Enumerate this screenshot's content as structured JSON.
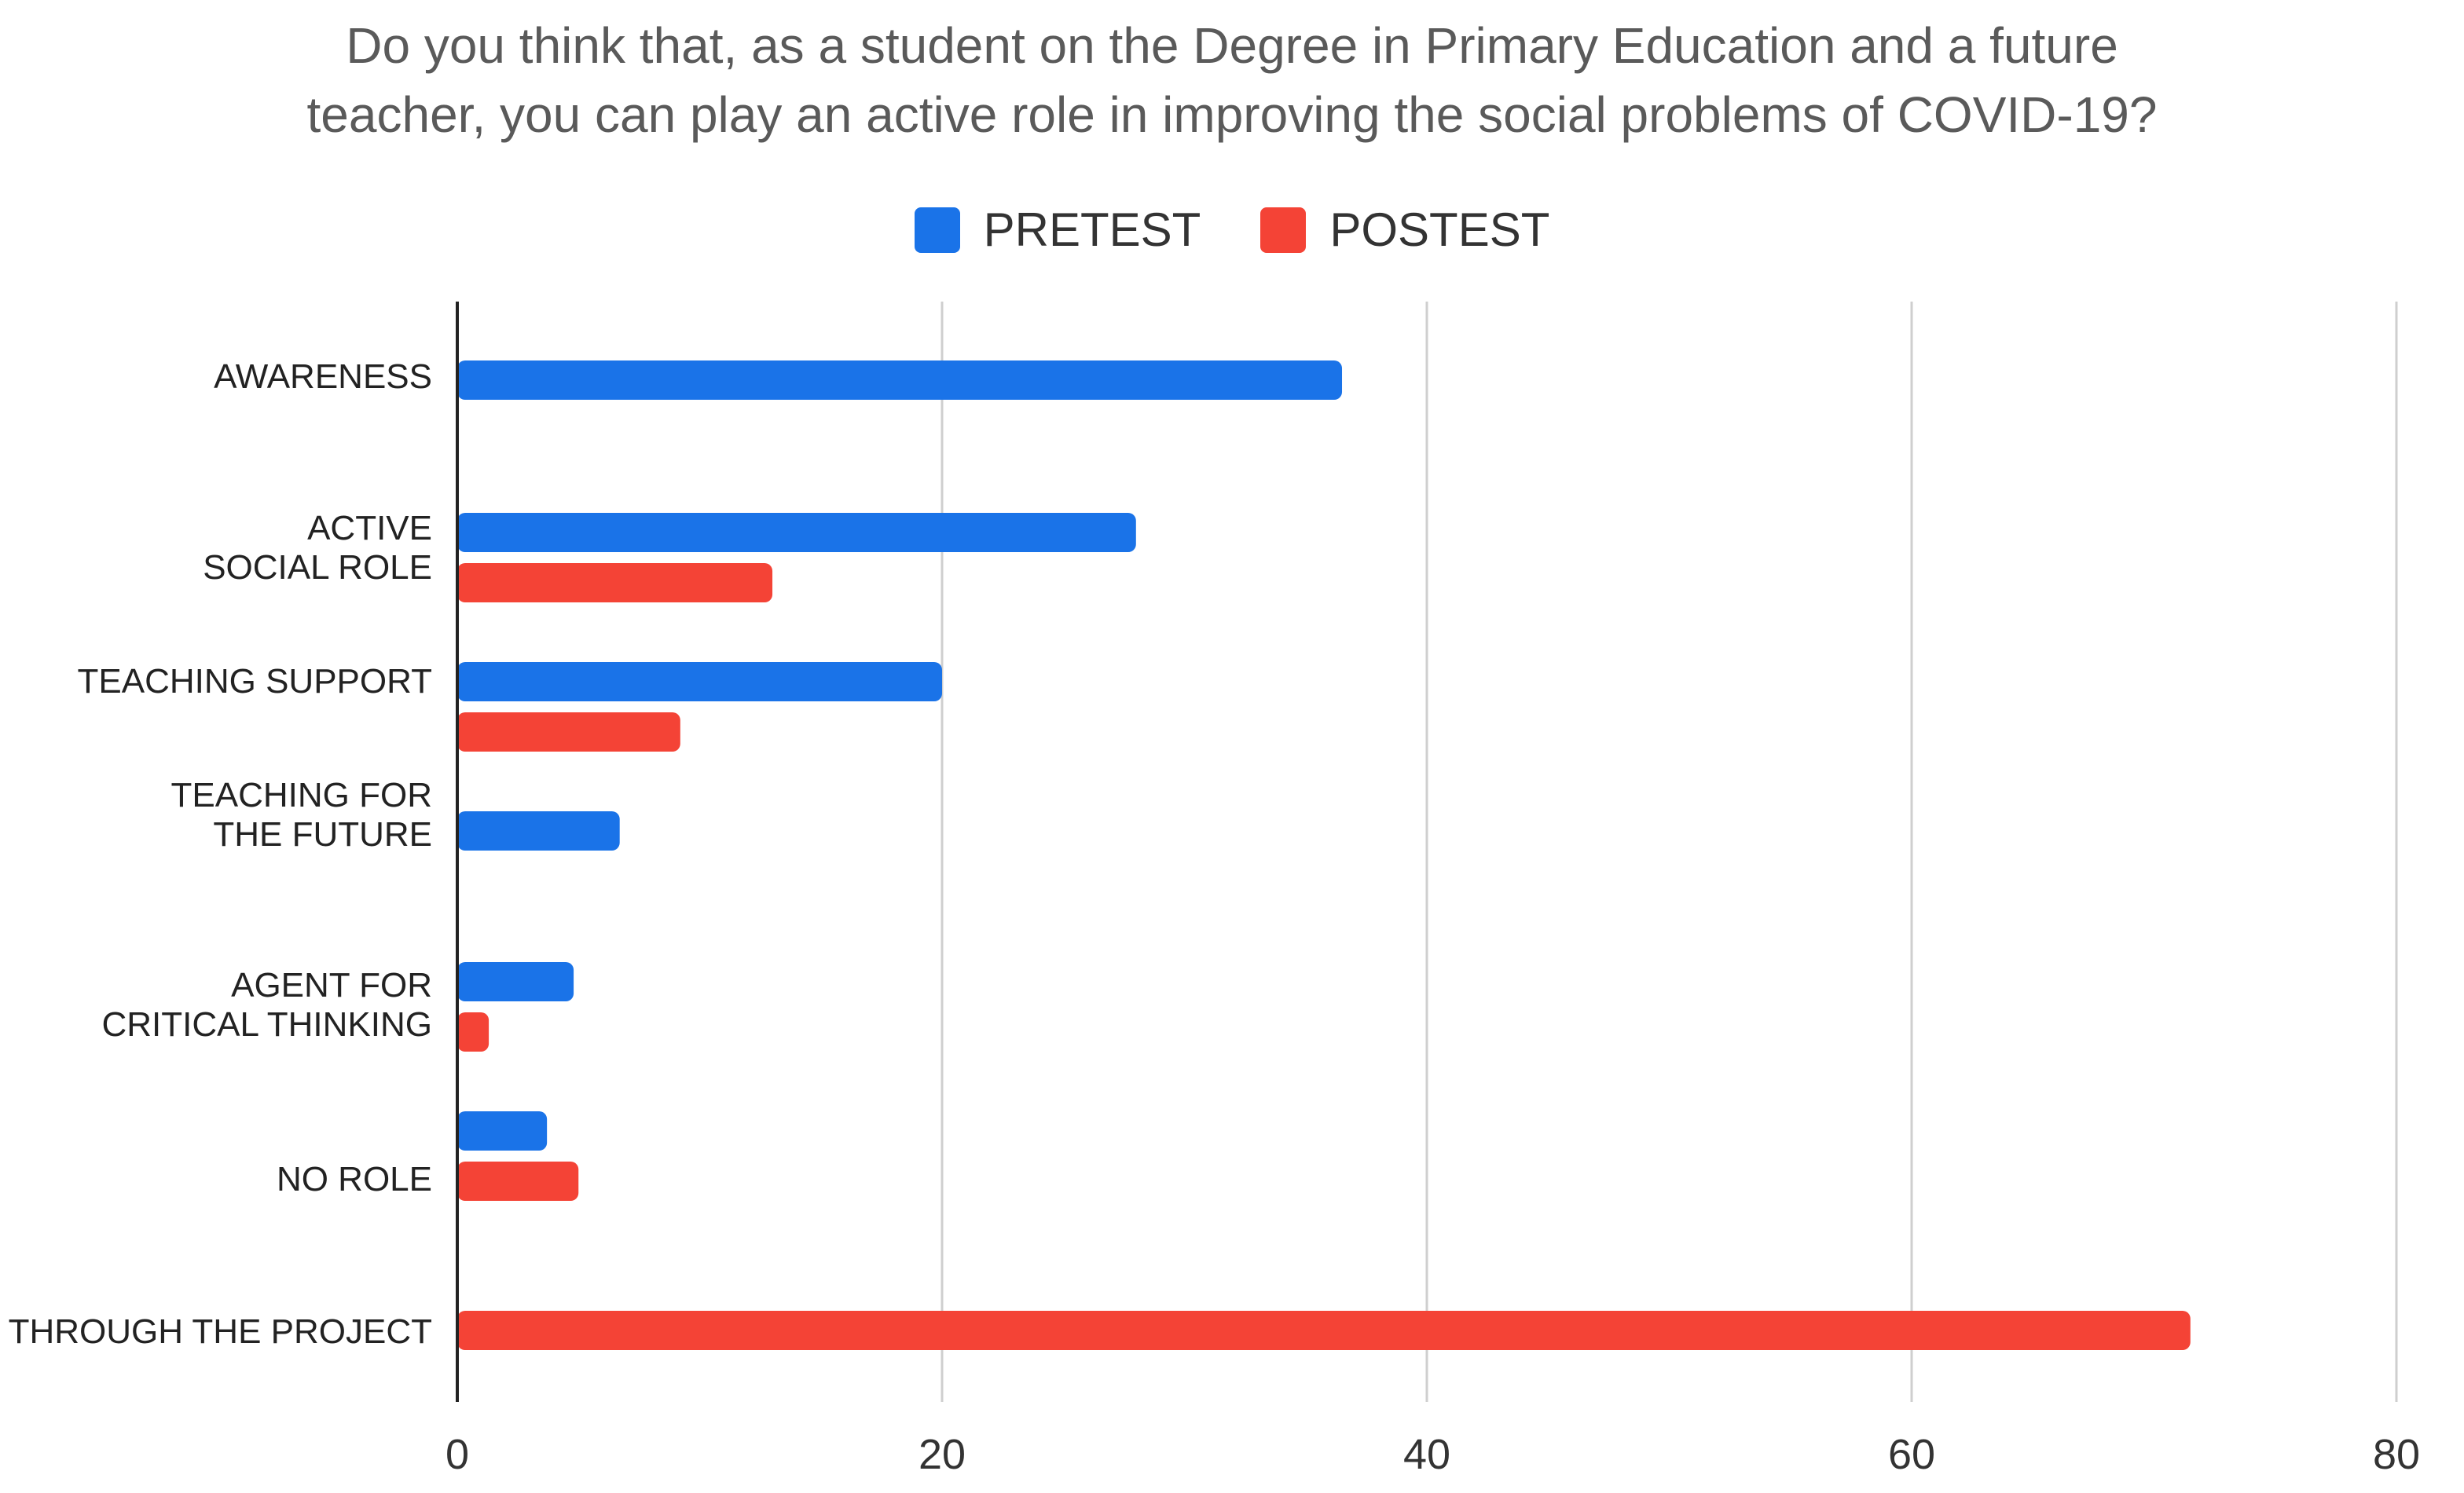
{
  "chart_data": {
    "type": "bar",
    "orientation": "horizontal",
    "title": "Do you think that, as a student on the Degree in Primary Education and a future\nteacher, you can play an active role in improving the social problems of COVID-19?",
    "xlabel": "",
    "ylabel": "",
    "xlim": [
      0,
      80
    ],
    "xticks": [
      0,
      20,
      40,
      60,
      80
    ],
    "grid": "vertical",
    "legend_position": "top-center",
    "categories": [
      "AWARENESS",
      "ACTIVE\nSOCIAL ROLE",
      "TEACHING SUPPORT",
      "TEACHING FOR\nTHE FUTURE",
      "AGENT FOR\nCRITICAL THINKING",
      "NO ROLE",
      "THROUGH THE PROJECT"
    ],
    "series": [
      {
        "name": "PRETEST",
        "color": "#1a73e8",
        "values": [
          36.5,
          28,
          20,
          6.7,
          4.8,
          3.7,
          null
        ]
      },
      {
        "name": "POSTEST",
        "color": "#f44336",
        "values": [
          null,
          13,
          9.2,
          null,
          1.3,
          5,
          71.5
        ]
      }
    ]
  }
}
